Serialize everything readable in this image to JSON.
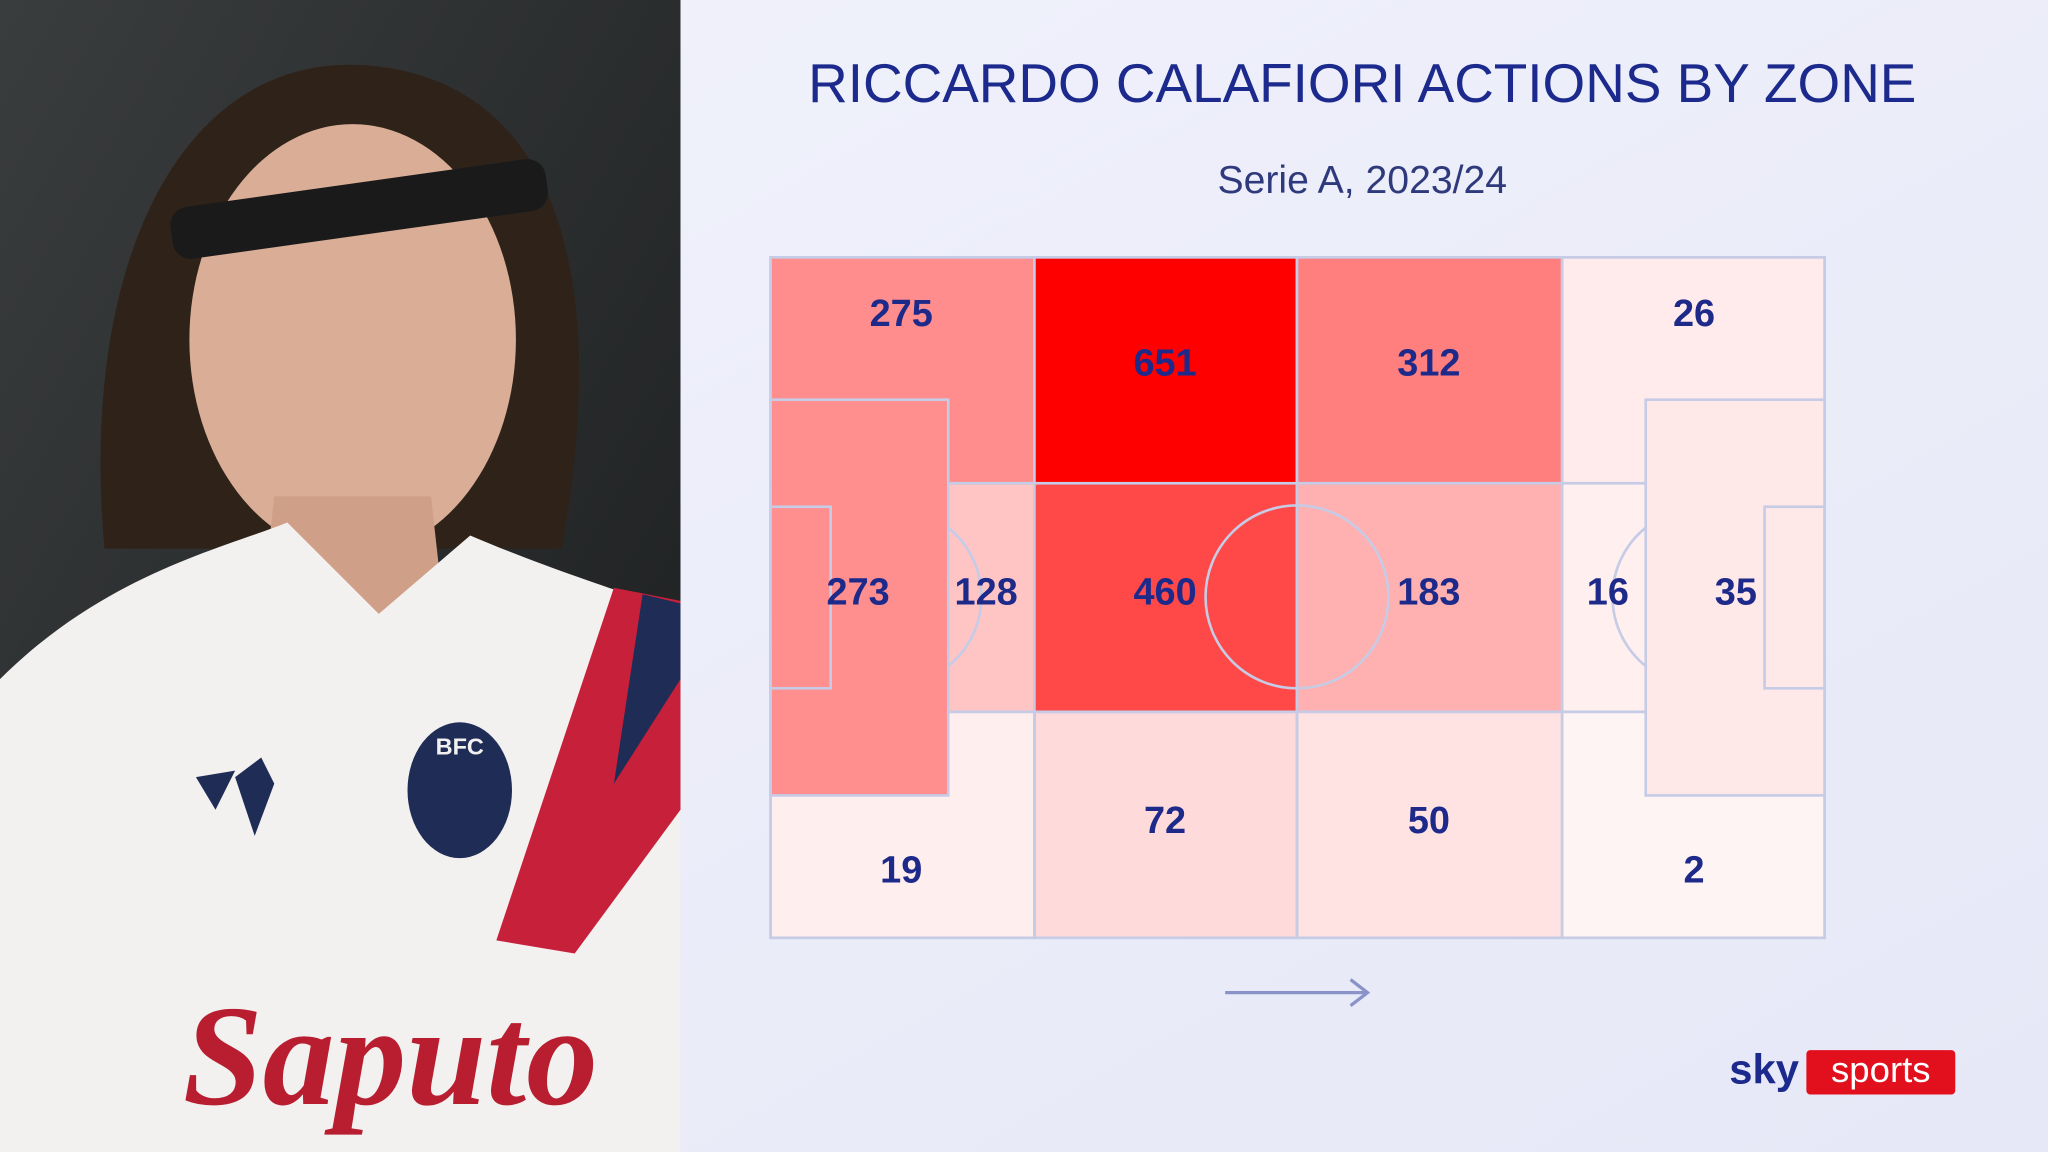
{
  "header": {
    "title": "RICCARDO CALAFIORI ACTIONS BY ZONE",
    "subtitle": "Serie A, 2023/24"
  },
  "pitch": {
    "zones": [
      275,
      651,
      312,
      26,
      273,
      128,
      460,
      183,
      16,
      35,
      19,
      72,
      50,
      2
    ]
  },
  "photo": {
    "sponsor": "Saputo",
    "badge": "BFC"
  },
  "logo": {
    "sky": "sky",
    "sports": "sports"
  }
}
